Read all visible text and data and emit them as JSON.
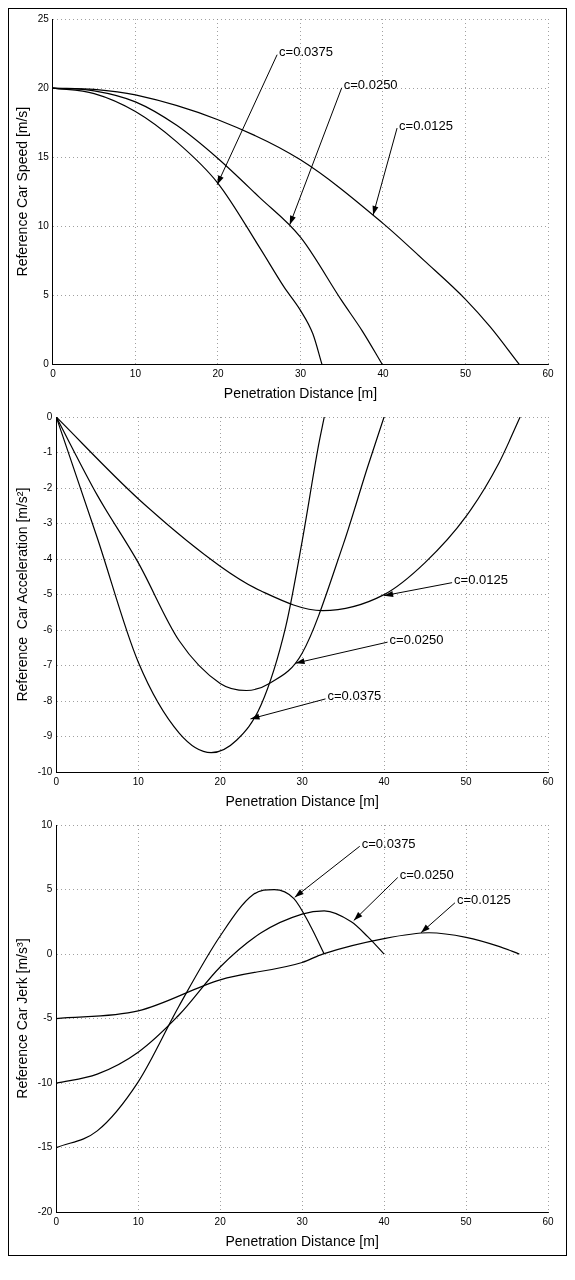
{
  "chart_data": [
    {
      "type": "line",
      "xlabel": "Penetration Distance [m]",
      "ylabel": "Reference Car Speed [m/s]",
      "xlim": [
        0,
        60
      ],
      "xticks": [
        0,
        10,
        20,
        30,
        40,
        50,
        60
      ],
      "ylim": [
        0,
        25
      ],
      "yticks": [
        0,
        5,
        10,
        15,
        20,
        25
      ],
      "grid": true,
      "marker": "none",
      "line_style": "solid",
      "series": [
        {
          "color": "#000000",
          "x": [
            0,
            5,
            10,
            15,
            20,
            25,
            28,
            30,
            31.5,
            32.6
          ],
          "values": [
            20,
            19.6,
            18.3,
            16.1,
            13.1,
            8.5,
            5.6,
            3.9,
            2.2,
            0
          ]
        },
        {
          "color": "#000000",
          "x": [
            0,
            5,
            10,
            15,
            20,
            25,
            30,
            35,
            37.5,
            39.9
          ],
          "values": [
            20,
            19.8,
            19,
            17.3,
            14.9,
            12.1,
            9.2,
            4.6,
            2.4,
            0
          ]
        },
        {
          "color": "#000000",
          "x": [
            0,
            5,
            10,
            20,
            30,
            40,
            45,
            50,
            53,
            56.5
          ],
          "values": [
            20,
            19.9,
            19.5,
            17.7,
            14.8,
            10.2,
            7.5,
            4.7,
            2.7,
            0
          ]
        }
      ],
      "annotations": [
        {
          "text": "c=0.0375",
          "x": 19.9,
          "y": 13
        },
        {
          "text": "c=0.0250",
          "x": 28.7,
          "y": 10.1
        },
        {
          "text": "c=0.0125",
          "x": 38.8,
          "y": 10.8
        }
      ]
    },
    {
      "type": "line",
      "xlabel": "Penetration Distance [m]",
      "ylabel": "Reference  Car Acceleration [m/s²]",
      "xlim": [
        0,
        60
      ],
      "xticks": [
        0,
        10,
        20,
        30,
        40,
        50,
        60
      ],
      "ylim": [
        -10,
        0
      ],
      "yticks": [
        -10,
        -9,
        -8,
        -7,
        -6,
        -5,
        -4,
        -3,
        -2,
        -1,
        0
      ],
      "grid": true,
      "marker": "none",
      "line_style": "solid",
      "series": [
        {
          "color": "#000000",
          "x": [
            0,
            5,
            10,
            15,
            18.9,
            22,
            25,
            28,
            30,
            32,
            32.7
          ],
          "values": [
            0,
            -3.4,
            -6.9,
            -8.9,
            -9.45,
            -9.1,
            -8.1,
            -5.9,
            -3.5,
            -0.8,
            0
          ]
        },
        {
          "color": "#000000",
          "x": [
            0,
            5,
            10,
            15,
            20,
            23.2,
            26,
            30,
            35,
            38,
            40
          ],
          "values": [
            0,
            -2.2,
            -4.1,
            -6.3,
            -7.5,
            -7.7,
            -7.5,
            -6.65,
            -3.6,
            -1.4,
            0
          ]
        },
        {
          "color": "#000000",
          "x": [
            0,
            10,
            20,
            25,
            32.5,
            40,
            45,
            50,
            54,
            56.6
          ],
          "values": [
            0,
            -2.3,
            -4.2,
            -4.9,
            -5.45,
            -5.0,
            -4.1,
            -2.8,
            -1.3,
            0
          ]
        }
      ],
      "annotations": [
        {
          "text": "c=0.0125",
          "x": 40,
          "y": -5.03
        },
        {
          "text": "c=0.0250",
          "x": 29.2,
          "y": -6.93
        },
        {
          "text": "c=0.0375",
          "x": 23.7,
          "y": -8.5
        }
      ]
    },
    {
      "type": "line",
      "xlabel": "Penetration Distance [m]",
      "ylabel": "Reference Car Jerk [m/s³]",
      "xlim": [
        0,
        60
      ],
      "xticks": [
        0,
        10,
        20,
        30,
        40,
        50,
        60
      ],
      "ylim": [
        -20,
        10
      ],
      "yticks": [
        -20,
        -15,
        -10,
        -5,
        0,
        5,
        10
      ],
      "grid": true,
      "marker": "none",
      "line_style": "solid",
      "series": [
        {
          "color": "#000000",
          "x": [
            0,
            5,
            10,
            15,
            20,
            24,
            26.6,
            29,
            31,
            32.7
          ],
          "values": [
            -15,
            -13.7,
            -9.9,
            -4,
            1.4,
            4.6,
            5,
            4.3,
            2.2,
            0
          ]
        },
        {
          "color": "#000000",
          "x": [
            0,
            5,
            10,
            15,
            20,
            25,
            30,
            32.7,
            36,
            38,
            40
          ],
          "values": [
            -10,
            -9.3,
            -7.6,
            -4.7,
            -1,
            1.65,
            3.1,
            3.35,
            2.5,
            1.35,
            0
          ]
        },
        {
          "color": "#000000",
          "x": [
            0,
            10,
            20,
            30,
            32.5,
            40,
            45.5,
            50,
            54,
            56.5
          ],
          "values": [
            -5,
            -4.4,
            -2,
            -0.65,
            0,
            1.2,
            1.65,
            1.3,
            0.6,
            0
          ]
        }
      ],
      "annotations": [
        {
          "text": "c=0.0375",
          "x": 29.1,
          "y": 4.4
        },
        {
          "text": "c=0.0250",
          "x": 36.3,
          "y": 2.6
        },
        {
          "text": "c=0.0125",
          "x": 44.5,
          "y": 1.65
        }
      ]
    }
  ]
}
